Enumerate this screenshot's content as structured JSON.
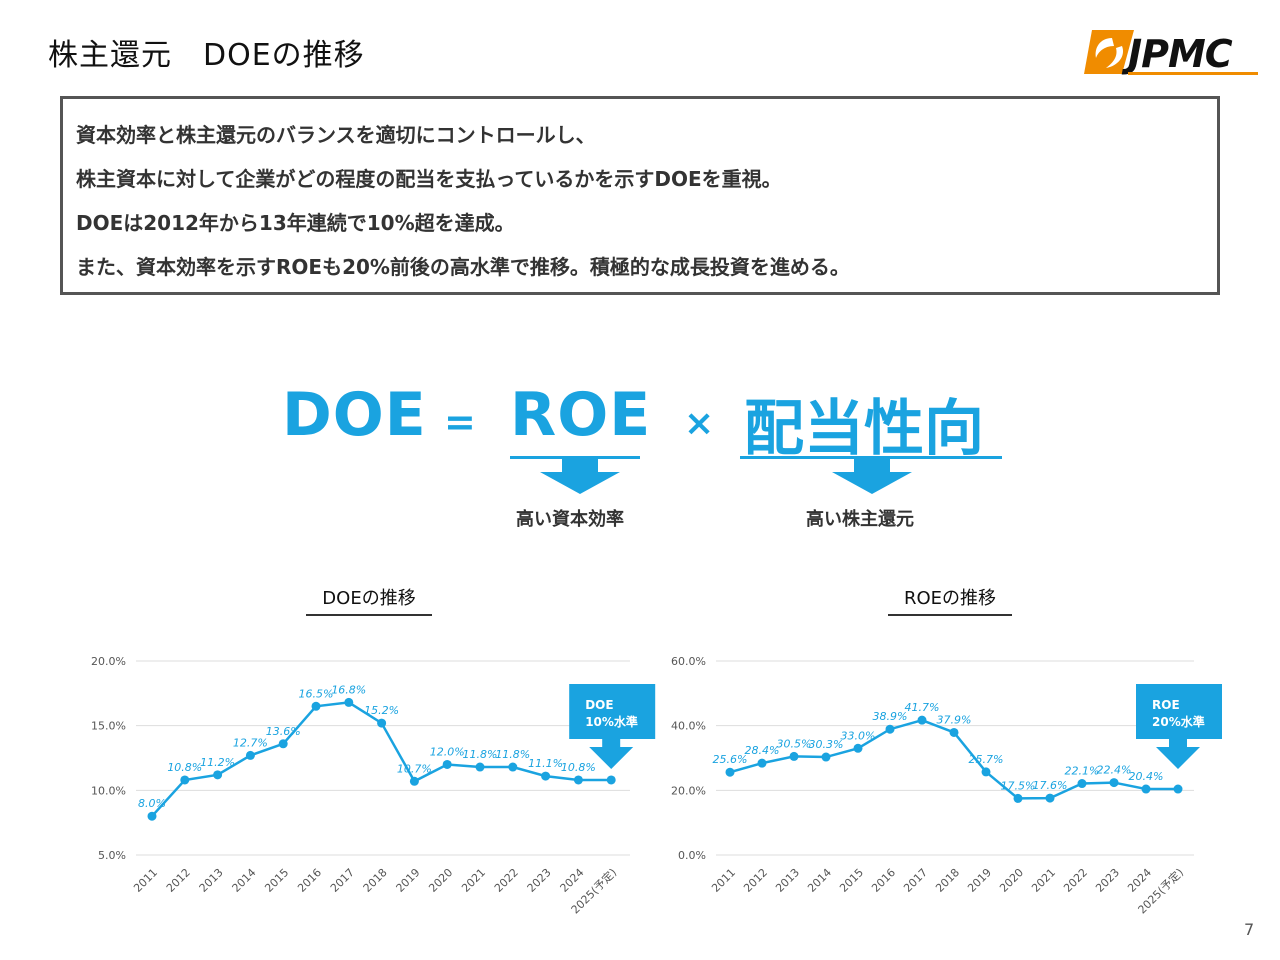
{
  "header": {
    "title": "株主還元　DOEの推移",
    "logo_text": "JPMC"
  },
  "summary": {
    "lines": [
      "資本効率と株主還元のバランスを適切にコントロールし、",
      "株主資本に対して企業がどの程度の配当を支払っているかを示すDOEを重視。",
      "DOEは2012年から13年連続で10%超を達成。",
      "また、資本効率を示すROEも20%前後の高水準で推移。積極的な成長投資を進める。"
    ]
  },
  "formula": {
    "doe": "DOE",
    "equals": "=",
    "roe": "ROE",
    "times": "×",
    "payout": "配当性向",
    "roe_caption": "高い資本効率",
    "payout_caption": "高い株主還元"
  },
  "colors": {
    "accent": "#1aa3e0",
    "text": "#333333",
    "grid": "#dddddd"
  },
  "chart_data": [
    {
      "type": "line",
      "title": "DOEの推移",
      "categories": [
        "2011",
        "2012",
        "2013",
        "2014",
        "2015",
        "2016",
        "2017",
        "2018",
        "2019",
        "2020",
        "2021",
        "2022",
        "2023",
        "2024",
        "2025(予定)"
      ],
      "values": [
        8.0,
        10.8,
        11.2,
        12.7,
        13.6,
        16.5,
        16.8,
        15.2,
        10.7,
        12.0,
        11.8,
        11.8,
        11.1,
        10.8,
        10.8
      ],
      "data_labels": [
        "8.0%",
        "10.8%",
        "11.2%",
        "12.7%",
        "13.6%",
        "16.5%",
        "16.8%",
        "15.2%",
        "10.7%",
        "12.0%",
        "11.8%",
        "11.8%",
        "11.1%",
        "10.8%",
        ""
      ],
      "yticks": [
        "5.0%",
        "10.0%",
        "15.0%",
        "20.0%"
      ],
      "ylim": [
        5,
        20
      ],
      "grid": true,
      "callout": {
        "line1": "DOE",
        "line2": "10%水準"
      }
    },
    {
      "type": "line",
      "title": "ROEの推移",
      "categories": [
        "2011",
        "2012",
        "2013",
        "2014",
        "2015",
        "2016",
        "2017",
        "2018",
        "2019",
        "2020",
        "2021",
        "2022",
        "2023",
        "2024",
        "2025(予定)"
      ],
      "values": [
        25.6,
        28.4,
        30.5,
        30.3,
        33.0,
        38.9,
        41.7,
        37.9,
        25.7,
        17.5,
        17.6,
        22.1,
        22.4,
        20.4,
        20.4
      ],
      "data_labels": [
        "25.6%",
        "28.4%",
        "30.5%",
        "30.3%",
        "33.0%",
        "38.9%",
        "41.7%",
        "37.9%",
        "25.7%",
        "17.5%",
        "17.6%",
        "22.1%",
        "22.4%",
        "20.4%",
        ""
      ],
      "yticks": [
        "0.0%",
        "20.0%",
        "40.0%",
        "60.0%"
      ],
      "ylim": [
        0,
        60
      ],
      "grid": true,
      "callout": {
        "line1": "ROE",
        "line2": "20%水準"
      }
    }
  ],
  "page_number": "7"
}
